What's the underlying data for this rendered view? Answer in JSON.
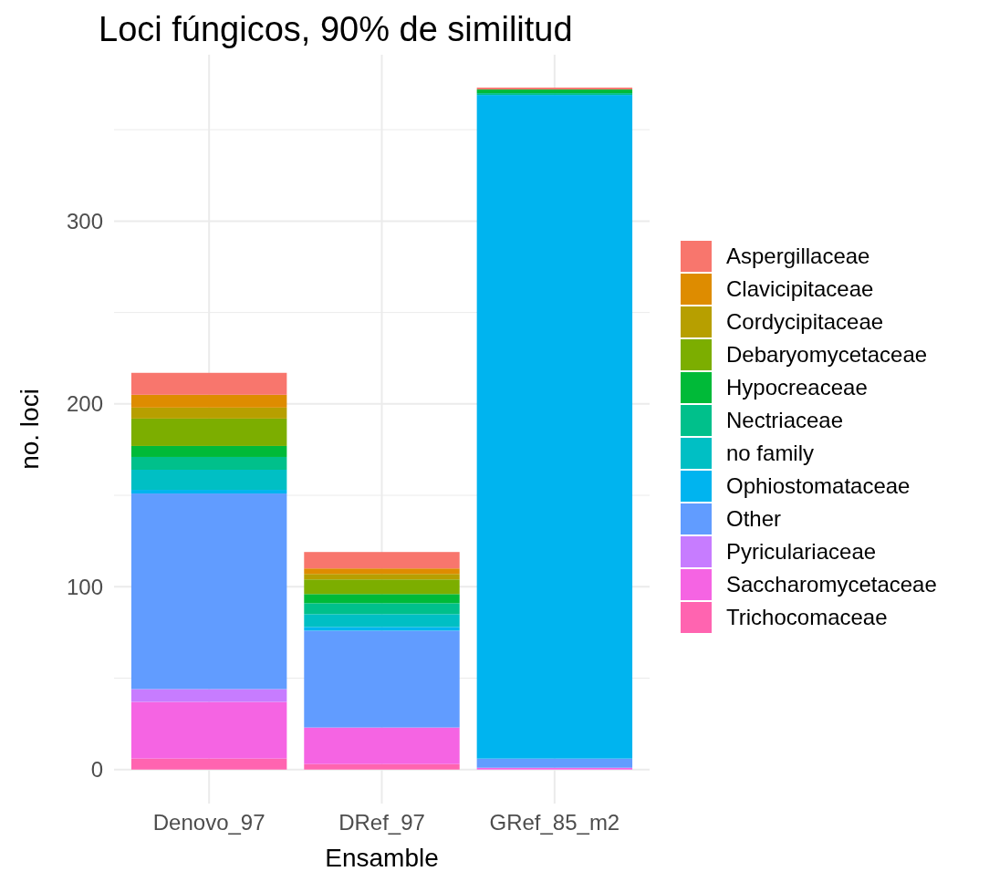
{
  "chart_data": {
    "type": "bar",
    "title": "Loci fúngicos,  90% de similitud",
    "xlabel": "Ensamble",
    "ylabel": "no. loci",
    "categories": [
      "Denovo_97",
      "DRef_97",
      "GRef_85_m2"
    ],
    "stacked": true,
    "legend": "right",
    "grid": true,
    "ylim": [
      -18.6,
      391
    ],
    "yticks": [
      0,
      {
        "value": 50,
        "label": null
      },
      100,
      {
        "value": 150,
        "label": null
      },
      200,
      {
        "value": 250,
        "label": null
      },
      300,
      {
        "value": 350,
        "label": null
      }
    ],
    "series": [
      {
        "name": "Trichocomaceae",
        "color": "#ff64b0",
        "values": [
          6,
          3,
          0
        ]
      },
      {
        "name": "Saccharomycetaceae",
        "color": "#f564e3",
        "values": [
          31,
          20,
          1
        ]
      },
      {
        "name": "Pyriculariaceae",
        "color": "#c77cff",
        "values": [
          7,
          0,
          0
        ]
      },
      {
        "name": "Other",
        "color": "#619cff",
        "values": [
          107,
          53,
          5
        ]
      },
      {
        "name": "Ophiostomataceae",
        "color": "#00b4ef",
        "values": [
          2,
          2,
          363
        ]
      },
      {
        "name": "no family",
        "color": "#00bfc4",
        "values": [
          11,
          7,
          0
        ]
      },
      {
        "name": "Nectriaceae",
        "color": "#00c08b",
        "values": [
          7,
          6,
          1
        ]
      },
      {
        "name": "Hypocreaceae",
        "color": "#00ba38",
        "values": [
          6,
          5,
          2
        ]
      },
      {
        "name": "Debaryomycetaceae",
        "color": "#7cae00",
        "values": [
          15,
          8,
          0
        ]
      },
      {
        "name": "Cordycipitaceae",
        "color": "#b79f00",
        "values": [
          6,
          3,
          0
        ]
      },
      {
        "name": "Clavicipitaceae",
        "color": "#de8c00",
        "values": [
          7,
          3,
          0
        ]
      },
      {
        "name": "Aspergillaceae",
        "color": "#f8766d",
        "values": [
          12,
          9,
          1
        ]
      }
    ]
  }
}
